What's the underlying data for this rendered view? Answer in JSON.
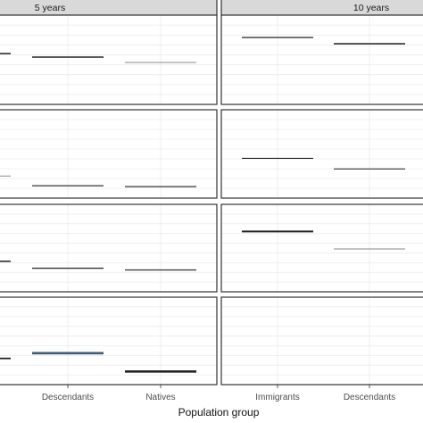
{
  "chart_data": {
    "type": "line",
    "facets": {
      "columns": [
        "5 years",
        "10 years"
      ],
      "rows": 4
    },
    "xlabel": "Population group",
    "columns_categories": [
      [
        "Descendants",
        "Natives"
      ],
      [
        "Immigrants",
        "Descendants"
      ]
    ],
    "ylim": [
      0,
      10
    ],
    "grid": true,
    "panels": [
      {
        "row": 0,
        "col": 0,
        "marks": [
          {
            "category": "edge",
            "value": 5.7,
            "color": "#222222",
            "weight": 1.6
          },
          {
            "category": "Descendants",
            "value": 5.3,
            "color": "#222222",
            "weight": 1.6
          },
          {
            "category": "Natives",
            "value": 4.7,
            "color": "#8a8a8a",
            "weight": 1.0
          }
        ]
      },
      {
        "row": 0,
        "col": 1,
        "marks": [
          {
            "category": "Immigrants",
            "value": 7.5,
            "color": "#222222",
            "weight": 1.2
          },
          {
            "category": "Descendants",
            "value": 6.8,
            "color": "#222222",
            "weight": 1.5
          }
        ]
      },
      {
        "row": 1,
        "col": 0,
        "marks": [
          {
            "category": "edge",
            "value": 2.5,
            "color": "#8a8a8a",
            "weight": 1.0
          },
          {
            "category": "Descendants",
            "value": 1.4,
            "color": "#333333",
            "weight": 1.3
          },
          {
            "category": "Natives",
            "value": 1.3,
            "color": "#333333",
            "weight": 1.3
          }
        ]
      },
      {
        "row": 1,
        "col": 1,
        "marks": [
          {
            "category": "Immigrants",
            "value": 4.5,
            "color": "#222222",
            "weight": 1.2
          },
          {
            "category": "Descendants",
            "value": 3.3,
            "color": "#333333",
            "weight": 1.2
          }
        ]
      },
      {
        "row": 2,
        "col": 0,
        "marks": [
          {
            "category": "edge",
            "value": 3.5,
            "color": "#222222",
            "weight": 1.5
          },
          {
            "category": "Descendants",
            "value": 2.7,
            "color": "#333333",
            "weight": 1.3
          },
          {
            "category": "Natives",
            "value": 2.5,
            "color": "#333333",
            "weight": 1.3
          }
        ]
      },
      {
        "row": 2,
        "col": 1,
        "marks": [
          {
            "category": "Immigrants",
            "value": 6.9,
            "color": "#222222",
            "weight": 2.0
          },
          {
            "category": "Descendants",
            "value": 4.9,
            "color": "#8a8a8a",
            "weight": 1.0
          }
        ]
      },
      {
        "row": 3,
        "col": 0,
        "marks": [
          {
            "category": "edge",
            "value": 3.0,
            "color": "#222222",
            "weight": 1.8
          },
          {
            "category": "Descendants",
            "value": 3.6,
            "color": "#4b5d70",
            "weight": 2.8
          },
          {
            "category": "Natives",
            "value": 1.5,
            "color": "#222222",
            "weight": 2.6
          }
        ]
      },
      {
        "row": 3,
        "col": 1,
        "marks": []
      }
    ]
  }
}
